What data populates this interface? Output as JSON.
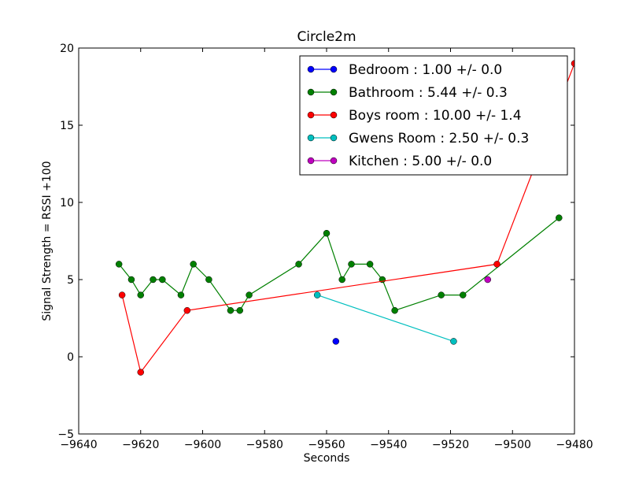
{
  "chart_data": {
    "type": "line",
    "title": "Circle2m",
    "xlabel": "Seconds",
    "ylabel": "Signal Strength  = RSSI +100",
    "xlim": [
      -9640,
      -9480
    ],
    "ylim": [
      -5,
      20
    ],
    "xticks": [
      -9640,
      -9620,
      -9600,
      -9580,
      -9560,
      -9540,
      -9520,
      -9500,
      -9480
    ],
    "yticks": [
      -5,
      0,
      5,
      10,
      15,
      20
    ],
    "xtick_labels": [
      "−9640",
      "−9620",
      "−9600",
      "−9580",
      "−9560",
      "−9540",
      "−9520",
      "−9500",
      "−9480"
    ],
    "ytick_labels": [
      "−5",
      "0",
      "5",
      "10",
      "15",
      "20"
    ],
    "grid": false,
    "legend_position": "top-right",
    "series": [
      {
        "name": "Bedroom : 1.00 +/- 0.0",
        "color": "#0000ff",
        "x": [
          -9557
        ],
        "y": [
          1
        ]
      },
      {
        "name": "Bathroom : 5.44 +/- 0.3",
        "color": "#008000",
        "x": [
          -9627,
          -9623,
          -9620,
          -9616,
          -9613,
          -9607,
          -9603,
          -9598,
          -9591,
          -9588,
          -9585,
          -9569,
          -9560,
          -9555,
          -9552,
          -9546,
          -9542,
          -9538,
          -9523,
          -9516,
          -9485
        ],
        "y": [
          6,
          5,
          4,
          5,
          5,
          4,
          6,
          5,
          3,
          3,
          4,
          6,
          8,
          5,
          6,
          6,
          5,
          3,
          4,
          4,
          9
        ]
      },
      {
        "name": "Boys room : 10.00 +/- 1.4",
        "color": "#ff0000",
        "x": [
          -9626,
          -9620,
          -9605,
          -9505,
          -9480
        ],
        "y": [
          4,
          -1,
          3,
          6,
          19
        ]
      },
      {
        "name": "Gwens Room : 2.50 +/- 0.3",
        "color": "#00bfbf",
        "x": [
          -9563,
          -9519
        ],
        "y": [
          4,
          1
        ]
      },
      {
        "name": "Kitchen : 5.00 +/- 0.0",
        "color": "#bf00bf",
        "x": [
          -9508
        ],
        "y": [
          5
        ]
      }
    ]
  }
}
